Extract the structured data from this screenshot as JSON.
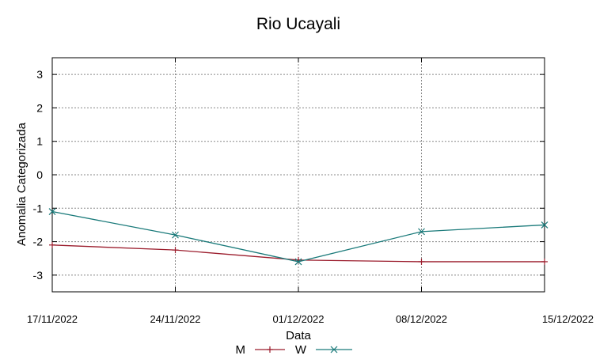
{
  "chart_data": {
    "type": "line",
    "title": "Rio Ucayali",
    "xlabel": "Data",
    "ylabel": "Anomalia Categorizada",
    "categories": [
      "17/11/2022",
      "24/11/2022",
      "01/12/2022",
      "08/12/2022",
      "15/12/2022"
    ],
    "ylim": [
      -3.5,
      3.5
    ],
    "yticks": [
      -3,
      -2,
      -1,
      0,
      1,
      2,
      3
    ],
    "grid": true,
    "legend_position": "bottom",
    "series": [
      {
        "name": "M",
        "color": "#9b1c2c",
        "marker": "plus",
        "values": [
          -2.1,
          -2.25,
          -2.55,
          -2.6,
          -2.6
        ]
      },
      {
        "name": "W",
        "color": "#1a7a7a",
        "marker": "x",
        "values": [
          -1.1,
          -1.8,
          -2.6,
          -1.7,
          -1.5
        ]
      }
    ]
  }
}
